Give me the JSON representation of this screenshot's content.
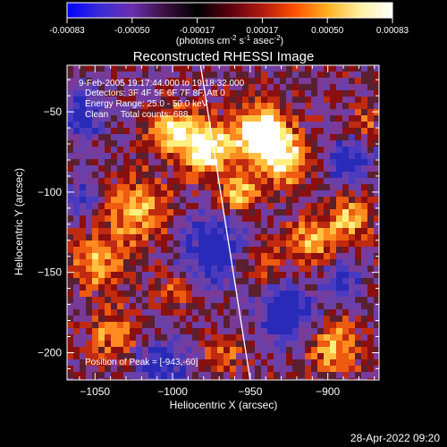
{
  "colorbar": {
    "ticks": [
      "-0.00083",
      "-0.00050",
      "-0.00017",
      "0.00017",
      "0.00050",
      "0.00083"
    ],
    "units_main": "(photons cm",
    "units_sup1": "-2",
    "units_mid": " s",
    "units_sup2": "-1",
    "units_end": " asec",
    "units_sup3": "-2",
    "units_close": ")",
    "colors": [
      "#0000ff",
      "#3a2bd6",
      "#6a2fb0",
      "#3a1040",
      "#000000",
      "#5a0010",
      "#b01a10",
      "#ff5000",
      "#ffb020",
      "#fff0a0",
      "#ffffff"
    ]
  },
  "chart_data": {
    "type": "heatmap",
    "title": "Reconstructed RHESSI Image",
    "xlabel": "Heliocentric X (arcsec)",
    "ylabel": "Heliocentric Y (arcsec)",
    "xlim": [
      -1068,
      -867
    ],
    "ylim": [
      -217,
      -21
    ],
    "x_ticks": [
      -1050,
      -1000,
      -950,
      -900
    ],
    "y_ticks": [
      -50,
      -100,
      -150,
      -200
    ],
    "annotations": [
      "9-Feb-2005 19:17:44.000 to 19:18:32.000",
      "Detectors: 3F 4F 5F 6F 7F 8F, Att 0",
      "Energy Range: 25.0 - 50.0 keV",
      "Clean     Total counts: 688."
    ],
    "peak_label": "Position of Peak = [-943,-60]",
    "limb_line": [
      [
        -982,
        -21
      ],
      [
        -950,
        -217
      ]
    ]
  },
  "footer": {
    "timestamp": "28-Apr-2022 09:20"
  }
}
